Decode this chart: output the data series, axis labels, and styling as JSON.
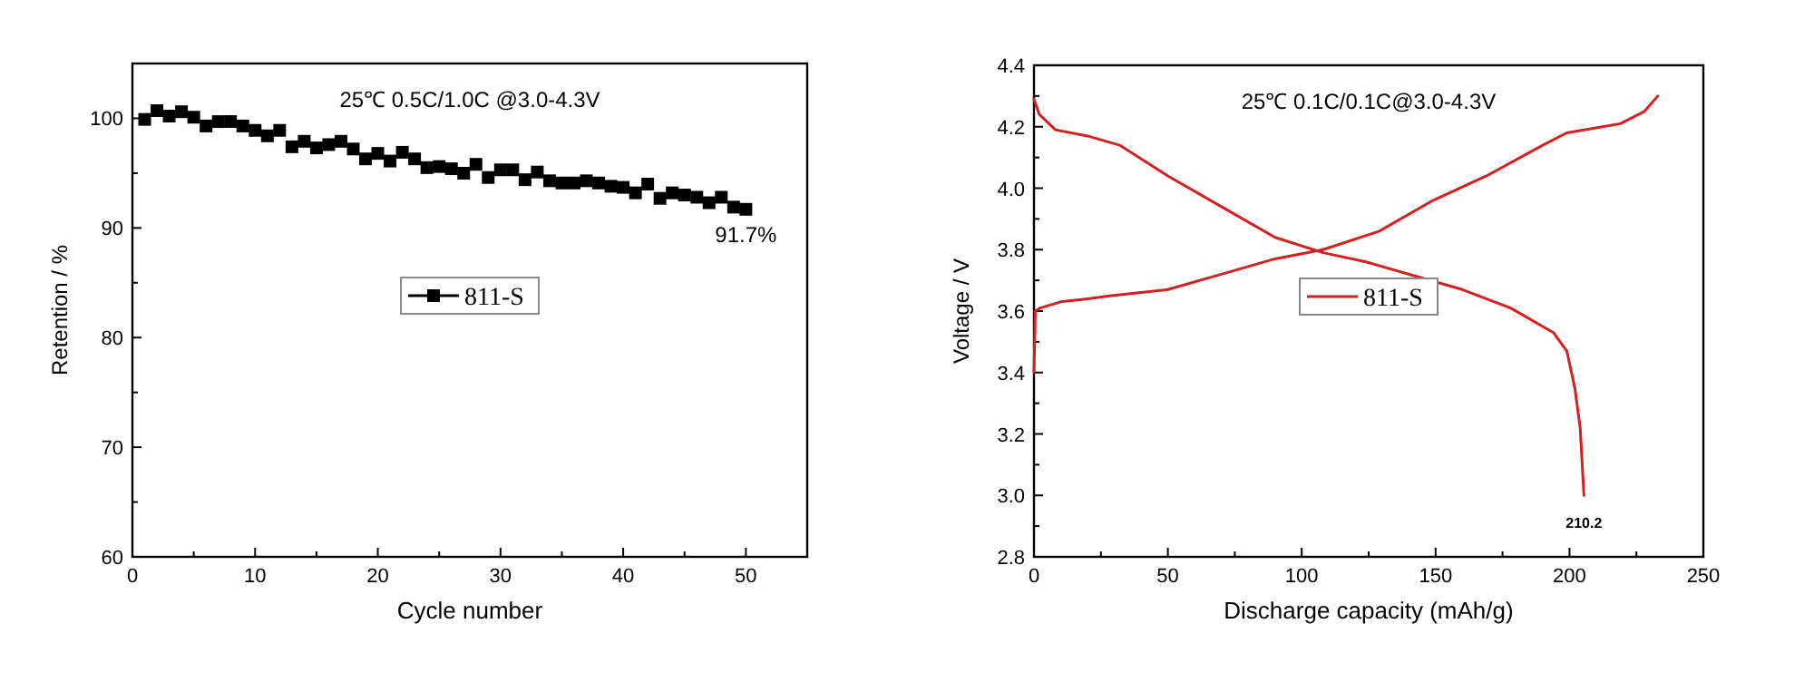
{
  "chart_data": [
    {
      "type": "scatter",
      "title": "25℃ 0.5C/1.0C @3.0-4.3V",
      "xlabel": "Cycle number",
      "ylabel": "Retention / %",
      "marker": "square",
      "legend": "center",
      "x": [
        1,
        2,
        3,
        4,
        5,
        6,
        7,
        8,
        9,
        10,
        11,
        12,
        13,
        14,
        15,
        16,
        17,
        18,
        19,
        20,
        21,
        22,
        23,
        24,
        25,
        26,
        27,
        28,
        29,
        30,
        31,
        32,
        33,
        34,
        35,
        36,
        37,
        38,
        39,
        40,
        41,
        42,
        43,
        44,
        45,
        46,
        47,
        48,
        49,
        50
      ],
      "series": [
        {
          "name": "811-S",
          "color": "#000000",
          "values": [
            99.9,
            100.7,
            100.2,
            100.6,
            100.1,
            99.3,
            99.7,
            99.7,
            99.3,
            98.9,
            98.4,
            98.9,
            97.4,
            97.9,
            97.3,
            97.6,
            97.9,
            97.2,
            96.3,
            96.8,
            96.1,
            96.9,
            96.3,
            95.5,
            95.6,
            95.4,
            95.0,
            95.8,
            94.6,
            95.3,
            95.3,
            94.4,
            95.1,
            94.3,
            94.1,
            94.1,
            94.3,
            94.1,
            93.8,
            93.7,
            93.2,
            94.0,
            92.7,
            93.2,
            93.0,
            92.8,
            92.3,
            92.8,
            91.9,
            91.7
          ]
        }
      ],
      "xlim": [
        0,
        55
      ],
      "xticks": [
        0,
        {
          "value": 5,
          "label": null
        },
        10,
        {
          "value": 15,
          "label": null
        },
        20,
        {
          "value": 25,
          "label": null
        },
        30,
        {
          "value": 35,
          "label": null
        },
        40,
        {
          "value": 45,
          "label": null
        },
        50,
        {
          "value": 55,
          "label": null
        }
      ],
      "ylim": [
        60,
        105
      ],
      "yticks": [
        60,
        {
          "value": 65,
          "label": null
        },
        70,
        {
          "value": 75,
          "label": null
        },
        80,
        {
          "value": 85,
          "label": null
        },
        90,
        {
          "value": 95,
          "label": null
        },
        100,
        {
          "value": 105,
          "label": null
        }
      ],
      "annotations": [
        {
          "text": "91.7%",
          "x": 50,
          "y": 91.7
        }
      ]
    },
    {
      "type": "line",
      "title": "25℃ 0.1C/0.1C@3.0-4.3V",
      "xlabel": "Discharge capacity (mAh/g)",
      "ylabel": "Voltage / V",
      "marker": "none",
      "line_style": "solid",
      "legend": "center",
      "series": [
        {
          "name": "811-S",
          "color": "#d42020",
          "x": [
            0,
            0.5,
            2.3,
            10,
            20,
            29,
            50,
            70,
            90,
            108,
            129,
            149,
            169,
            190,
            199,
            219,
            228,
            233
          ],
          "values": [
            3.4,
            3.6,
            3.61,
            3.63,
            3.64,
            3.65,
            3.67,
            3.72,
            3.77,
            3.8,
            3.86,
            3.96,
            4.04,
            4.14,
            4.18,
            4.21,
            4.25,
            4.3
          ]
        },
        {
          "color": "#d42020",
          "x": [
            0,
            2,
            8,
            20,
            32,
            50,
            70,
            90,
            108,
            124,
            144,
            160,
            178,
            194,
            199,
            202,
            204,
            205.4
          ],
          "values": [
            4.29,
            4.24,
            4.19,
            4.17,
            4.14,
            4.04,
            3.94,
            3.84,
            3.79,
            3.76,
            3.71,
            3.67,
            3.61,
            3.53,
            3.47,
            3.35,
            3.22,
            3.0
          ]
        }
      ],
      "xlim": [
        0,
        250
      ],
      "xticks": [
        0,
        {
          "value": 25,
          "label": null
        },
        50,
        {
          "value": 75,
          "label": null
        },
        100,
        {
          "value": 125,
          "label": null
        },
        150,
        {
          "value": 175,
          "label": null
        },
        200,
        {
          "value": 225,
          "label": null
        },
        250
      ],
      "ylim": [
        2.8,
        4.4
      ],
      "yticks": [
        2.8,
        {
          "value": 2.9,
          "label": null
        },
        {
          "value": 3,
          "label": "3.0"
        },
        {
          "value": 3.1,
          "label": null
        },
        3.2,
        {
          "value": 3.3,
          "label": null
        },
        3.4,
        {
          "value": 3.5,
          "label": null
        },
        3.6,
        {
          "value": 3.7,
          "label": null
        },
        3.8,
        {
          "value": 3.9,
          "label": null
        },
        {
          "value": 4,
          "label": "4.0"
        },
        {
          "value": 4.1,
          "label": null
        },
        4.2,
        {
          "value": 4.3,
          "label": null
        },
        4.4
      ],
      "annotations": [
        {
          "text": "210.2",
          "x": 205.4,
          "y": 3.0
        }
      ]
    }
  ]
}
